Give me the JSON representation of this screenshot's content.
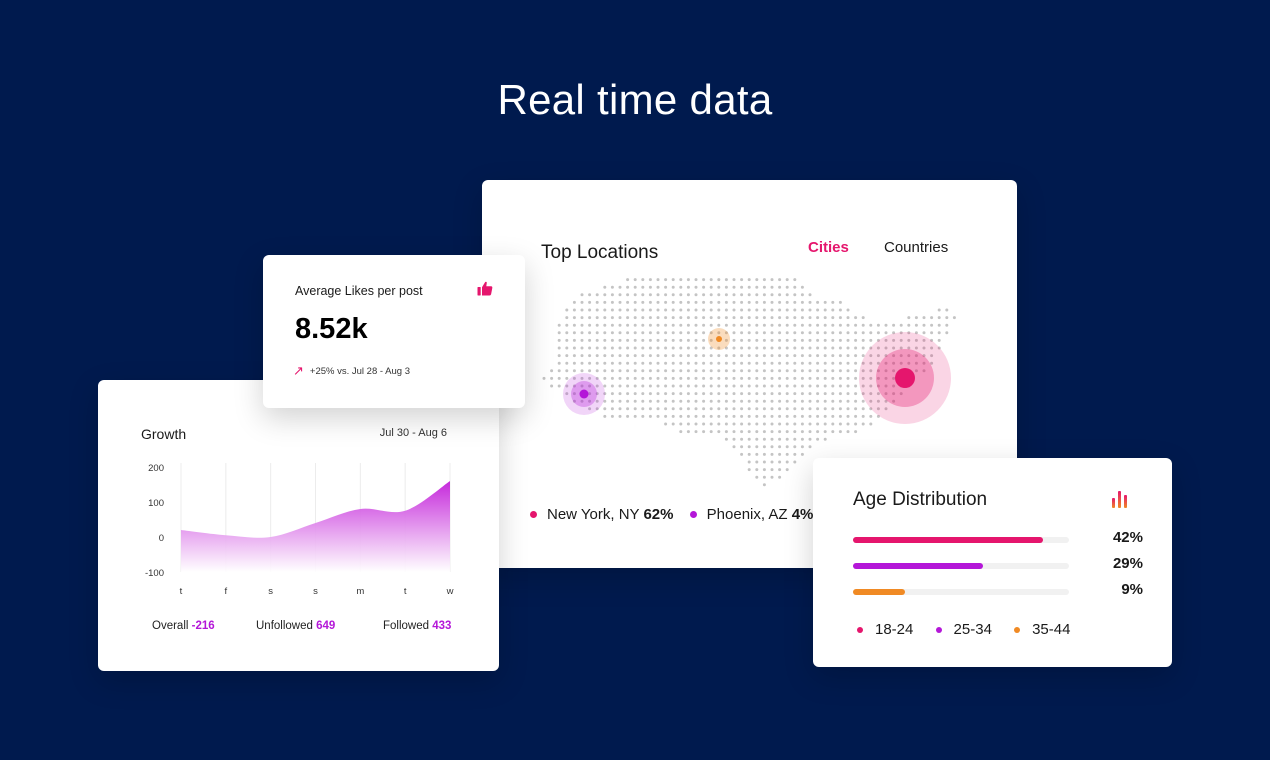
{
  "headline": "Real time data",
  "top_locations": {
    "title": "Top Locations",
    "tabs": {
      "cities": "Cities",
      "countries": "Countries"
    },
    "legend": [
      {
        "name": "New York, NY",
        "value": "62%",
        "color": "#e5166d"
      },
      {
        "name": "Phoenix, AZ",
        "value": "4%",
        "color": "#b417d8"
      }
    ]
  },
  "likes": {
    "label": "Average Likes per post",
    "value": "8.52k",
    "change": "+25% vs. Jul 28 - Aug 3",
    "icon": "thumbs-up-icon"
  },
  "growth": {
    "title": "Growth",
    "range": "Jul 30 - Aug 6",
    "stats": [
      {
        "label": "Overall",
        "value": "-216"
      },
      {
        "label": "Unfollowed",
        "value": "649"
      },
      {
        "label": "Followed",
        "value": "433"
      }
    ]
  },
  "chart_data": {
    "type": "area",
    "title": "Growth",
    "x": [
      "t",
      "f",
      "s",
      "s",
      "m",
      "t",
      "w"
    ],
    "yticks": [
      "200",
      "100",
      "0",
      "-100"
    ],
    "ylim": [
      -100,
      200
    ],
    "values": [
      20,
      5,
      0,
      40,
      80,
      75,
      160
    ],
    "grid": "vertical",
    "fill": [
      "#c21ed9",
      "#ffffff"
    ]
  },
  "age": {
    "title": "Age Distribution",
    "icon": "bar-chart-icon",
    "bars": [
      {
        "label": "18-24",
        "percent": "42%",
        "fraction": 0.88,
        "color": "#e5166d"
      },
      {
        "label": "25-34",
        "percent": "29%",
        "fraction": 0.6,
        "color": "#b417d8"
      },
      {
        "label": "35-44",
        "percent": "9%",
        "fraction": 0.24,
        "color": "#f08a24"
      }
    ]
  }
}
